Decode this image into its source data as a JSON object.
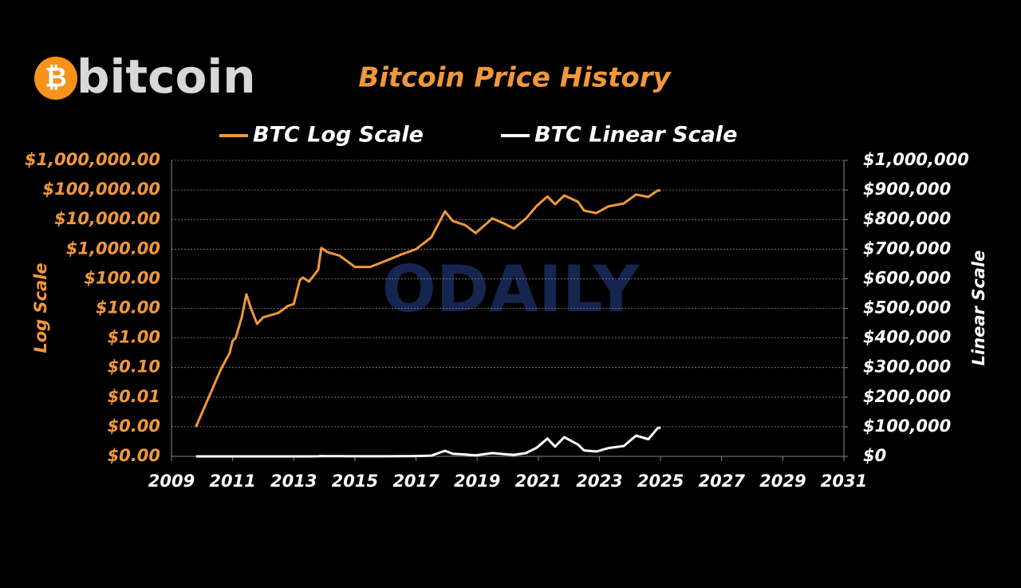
{
  "logo": {
    "symbol": "₿",
    "wordmark": "bitcoin"
  },
  "watermark": "ODAILY",
  "chart_data": {
    "type": "line",
    "title": "Bitcoin Price History",
    "y_label": "Log Scale",
    "y2_label": "Linear Scale",
    "y_scale": "log",
    "grid": true,
    "legend": "top",
    "x": [
      2009.8,
      2010.6,
      2010.8,
      2010.9,
      2011.0,
      2011.1,
      2011.3,
      2011.45,
      2011.6,
      2011.8,
      2012.0,
      2012.5,
      2012.8,
      2013.0,
      2013.2,
      2013.3,
      2013.5,
      2013.8,
      2013.9,
      2014.1,
      2014.5,
      2015.0,
      2015.5,
      2016.0,
      2016.5,
      2017.0,
      2017.5,
      2017.95,
      2018.2,
      2018.6,
      2018.95,
      2019.5,
      2019.9,
      2020.2,
      2020.6,
      2020.95,
      2021.3,
      2021.55,
      2021.85,
      2022.3,
      2022.5,
      2022.9,
      2023.3,
      2023.8,
      2024.2,
      2024.6,
      2024.9,
      2025.0
    ],
    "series": [
      {
        "name": "BTC Log Scale",
        "color": "#f0983a",
        "values": [
          0.001,
          0.08,
          0.2,
          0.3,
          0.8,
          1,
          5,
          30,
          10,
          3,
          5,
          7,
          12,
          14,
          90,
          110,
          80,
          200,
          1100,
          800,
          600,
          250,
          250,
          400,
          650,
          1000,
          2500,
          19000,
          9000,
          6500,
          3500,
          11000,
          7200,
          5000,
          11000,
          29000,
          60000,
          33000,
          65000,
          40000,
          20000,
          16500,
          28000,
          35000,
          70000,
          58000,
          95000,
          97000
        ]
      },
      {
        "name": "BTC Linear Scale",
        "color": "#ffffff",
        "axis": "y2",
        "values": [
          0.001,
          0.08,
          0.2,
          0.3,
          0.8,
          1,
          5,
          30,
          10,
          3,
          5,
          7,
          12,
          14,
          90,
          110,
          80,
          200,
          1100,
          800,
          600,
          250,
          250,
          400,
          650,
          1000,
          2500,
          19000,
          9000,
          6500,
          3500,
          11000,
          7200,
          5000,
          11000,
          29000,
          60000,
          33000,
          65000,
          40000,
          20000,
          16500,
          28000,
          35000,
          70000,
          58000,
          95000,
          97000
        ]
      }
    ],
    "xlim": [
      2009,
      2031
    ],
    "xticks": [
      2009,
      2011,
      2013,
      2015,
      2017,
      2019,
      2021,
      2023,
      2025,
      2027,
      2029,
      2031
    ],
    "ylim": [
      0.0001,
      1000000
    ],
    "yticks": [
      {
        "value": 0.0001,
        "label": "$0.00"
      },
      {
        "value": 0.001,
        "label": "$0.00"
      },
      {
        "value": 0.01,
        "label": "$0.01"
      },
      {
        "value": 0.1,
        "label": "$0.10"
      },
      {
        "value": 1,
        "label": "$1.00"
      },
      {
        "value": 10,
        "label": "$10.00"
      },
      {
        "value": 100,
        "label": "$100.00"
      },
      {
        "value": 1000,
        "label": "$1,000.00"
      },
      {
        "value": 10000,
        "label": "$10,000.00"
      },
      {
        "value": 100000,
        "label": "$100,000.00"
      },
      {
        "value": 1000000,
        "label": "$1,000,000.00"
      }
    ],
    "y2lim": [
      0,
      1000000
    ],
    "y2ticks": [
      {
        "value": 0,
        "label": "$0"
      },
      {
        "value": 100000,
        "label": "$100,000"
      },
      {
        "value": 200000,
        "label": "$200,000"
      },
      {
        "value": 300000,
        "label": "$300,000"
      },
      {
        "value": 400000,
        "label": "$400,000"
      },
      {
        "value": 500000,
        "label": "$500,000"
      },
      {
        "value": 600000,
        "label": "$600,000"
      },
      {
        "value": 700000,
        "label": "$700,000"
      },
      {
        "value": 800000,
        "label": "$800,000"
      },
      {
        "value": 900000,
        "label": "$900,000"
      },
      {
        "value": 1000000,
        "label": "$1,000,000"
      }
    ]
  }
}
